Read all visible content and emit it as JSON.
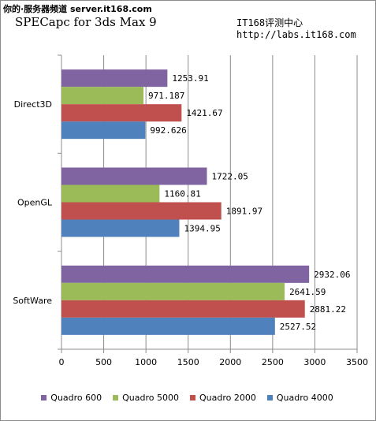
{
  "header": {
    "watermark": "你的·服务器频道 server.it168.com",
    "source_name": "IT168评测中心",
    "source_url": "http://labs.it168.com"
  },
  "chart_data": {
    "type": "bar",
    "orientation": "horizontal",
    "title": "SPECapc for 3ds Max 9",
    "categories": [
      "Direct3D",
      "OpenGL",
      "SoftWare"
    ],
    "series": [
      {
        "name": "Quadro 600",
        "color": "#8064a2",
        "values": [
          1253.91,
          1722.05,
          2932.06
        ],
        "labels": [
          "1253.91",
          "1722.05",
          "2932.06"
        ]
      },
      {
        "name": "Quadro 5000",
        "color": "#9bbb59",
        "values": [
          971.187,
          1160.81,
          2641.59
        ],
        "labels": [
          "971.187",
          "1160.81",
          "2641.59"
        ]
      },
      {
        "name": "Quadro 2000",
        "color": "#c0504d",
        "values": [
          1421.67,
          1891.97,
          2881.22
        ],
        "labels": [
          "1421.67",
          "1891.97",
          "2881.22"
        ]
      },
      {
        "name": "Quadro 4000",
        "color": "#4f81bd",
        "values": [
          992.626,
          1394.95,
          2527.52
        ],
        "labels": [
          "992.626",
          "1394.95",
          "2527.52"
        ]
      }
    ],
    "x_ticks": [
      "0",
      "500",
      "1000",
      "1500",
      "2000",
      "2500",
      "3000",
      "3500"
    ],
    "xlim": [
      0,
      3500
    ],
    "grid": "vertical",
    "legend_position": "bottom"
  }
}
